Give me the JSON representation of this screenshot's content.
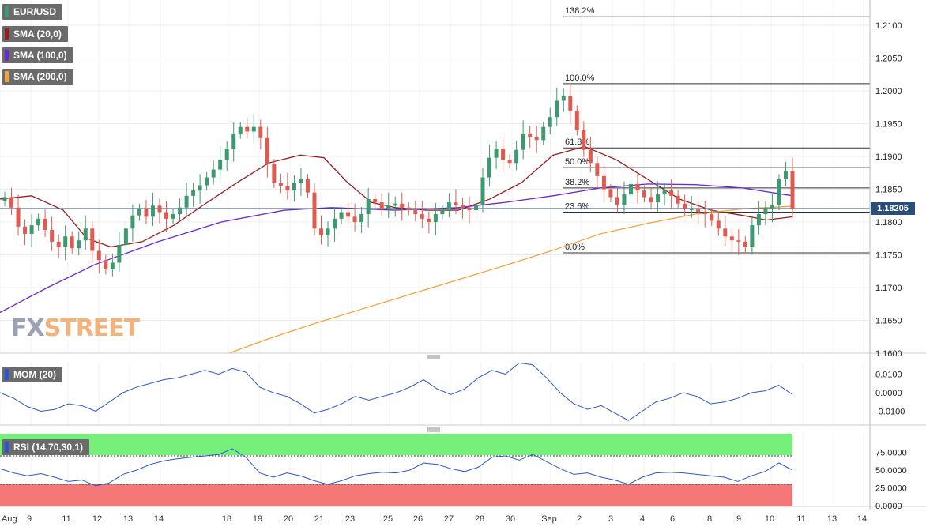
{
  "legends": {
    "pair": "EUR/USD",
    "sma20": "SMA (20,0)",
    "sma100": "SMA (100,0)",
    "sma200": "SMA (200,0)",
    "mom": "MOM (20)",
    "rsi": "RSI (14,70,30,1)"
  },
  "colors": {
    "up": "#3d9970",
    "down": "#e05a50",
    "sma20": "#9b1c1c",
    "sma100": "#6a28d6",
    "sma200": "#f3a23a",
    "indicator": "#2a55d6",
    "rsi_overbought": "#76f07a",
    "rsi_oversold": "#f47878",
    "price_tag": "#2b4d7a"
  },
  "price_tag": "1.18205",
  "logo": {
    "fx": "FX",
    "street": "STREET"
  },
  "chart_data": {
    "type": "candlestick",
    "price_axis": {
      "ticks": [
        "1.2100",
        "1.2050",
        "1.2000",
        "1.1950",
        "1.1900",
        "1.1850",
        "1.1800",
        "1.1750",
        "1.1700",
        "1.1650",
        "1.1600"
      ],
      "range": [
        1.16,
        1.212
      ]
    },
    "x_axis_labels": [
      "Aug",
      "9",
      "11",
      "12",
      "13",
      "14",
      "18",
      "19",
      "20",
      "21",
      "23",
      "25",
      "26",
      "27",
      "28",
      "30",
      "Sep",
      "2",
      "3",
      "4",
      "6",
      "8",
      "9",
      "10",
      "11",
      "13",
      "14"
    ],
    "current_price": 1.18205,
    "fibonacci": [
      {
        "label": "138.2%",
        "value": 1.2113
      },
      {
        "label": "100.0%",
        "value": 1.2011
      },
      {
        "label": "61.8%",
        "value": 1.1913
      },
      {
        "label": "50.0%",
        "value": 1.1883
      },
      {
        "label": "38.2%",
        "value": 1.1852
      },
      {
        "label": "23.6%",
        "value": 1.1815
      },
      {
        "label": "0.0%",
        "value": 1.1753
      }
    ],
    "mom_axis": {
      "ticks": [
        "0.0100",
        "0.0000",
        "-0.0100"
      ],
      "range": [
        -0.018,
        0.018
      ]
    },
    "rsi_axis": {
      "ticks": [
        "75.0000",
        "50.0000",
        "25.0000",
        "0.0000"
      ],
      "range": [
        0,
        100
      ],
      "overbought": 70,
      "oversold": 30
    }
  }
}
